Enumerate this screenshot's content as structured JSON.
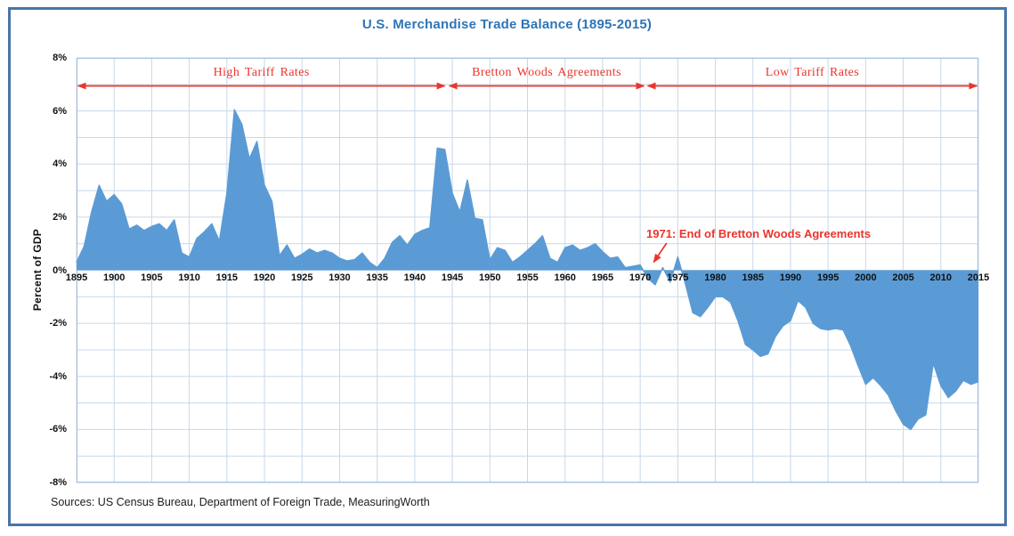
{
  "title": "U.S. Merchandise Trade Balance (1895-2015)",
  "source_note": "Sources: US Census Bureau, Department of Foreign Trade, MeasuringWorth",
  "y_axis": {
    "title": "Percent of GDP",
    "tick_labels": [
      "8%",
      "6%",
      "4%",
      "2%",
      "0%",
      "-2%",
      "-4%",
      "-6%",
      "-8%"
    ]
  },
  "x_axis": {
    "tick_labels": [
      "1895",
      "1900",
      "1905",
      "1910",
      "1915",
      "1920",
      "1925",
      "1930",
      "1935",
      "1940",
      "1945",
      "1950",
      "1955",
      "1960",
      "1965",
      "1970",
      "1975",
      "1980",
      "1985",
      "1990",
      "1995",
      "2000",
      "2005",
      "2010",
      "2015"
    ]
  },
  "annotations": {
    "zones": [
      {
        "label": "High Tariff Rates",
        "start_year": 1895.2,
        "end_year": 1944.0
      },
      {
        "label": "Bretton Woods Agreements",
        "start_year": 1944.6,
        "end_year": 1970.5
      },
      {
        "label": "Low Tariff Rates",
        "start_year": 1971.0,
        "end_year": 2014.8
      }
    ],
    "callout": {
      "label": "1971: End of Bretton Woods Agreements",
      "target_year": 1971.5
    }
  },
  "colors": {
    "area_fill": "#5B9BD5",
    "annotation_red": "#EA352C",
    "title_blue": "#2E75B6",
    "gridline": "#C8D8E8",
    "plot_border": "#A8C4DE",
    "frame_border": "#4A74A8",
    "tick_text": "#111111"
  },
  "chart_data": {
    "type": "area",
    "title": "U.S. Merchandise Trade Balance (1895-2015)",
    "xlabel": "",
    "ylabel": "Percent of GDP",
    "ylim": [
      -8,
      8
    ],
    "xlim": [
      1895,
      2015
    ],
    "grid": true,
    "x_tick_step": 5,
    "y_tick_step_labeled": 2,
    "y_tick_step_grid": 1,
    "legend": "none",
    "years": [
      1895,
      1896,
      1897,
      1898,
      1899,
      1900,
      1901,
      1902,
      1903,
      1904,
      1905,
      1906,
      1907,
      1908,
      1909,
      1910,
      1911,
      1912,
      1913,
      1914,
      1915,
      1916,
      1917,
      1918,
      1919,
      1920,
      1921,
      1922,
      1923,
      1924,
      1925,
      1926,
      1927,
      1928,
      1929,
      1930,
      1931,
      1932,
      1933,
      1934,
      1935,
      1936,
      1937,
      1938,
      1939,
      1940,
      1941,
      1942,
      1943,
      1944,
      1945,
      1946,
      1947,
      1948,
      1949,
      1950,
      1951,
      1952,
      1953,
      1954,
      1955,
      1956,
      1957,
      1958,
      1959,
      1960,
      1961,
      1962,
      1963,
      1964,
      1965,
      1966,
      1967,
      1968,
      1969,
      1970,
      1971,
      1972,
      1973,
      1974,
      1975,
      1976,
      1977,
      1978,
      1979,
      1980,
      1981,
      1982,
      1983,
      1984,
      1985,
      1986,
      1987,
      1988,
      1989,
      1990,
      1991,
      1992,
      1993,
      1994,
      1995,
      1996,
      1997,
      1998,
      1999,
      2000,
      2001,
      2002,
      2003,
      2004,
      2005,
      2006,
      2007,
      2008,
      2009,
      2010,
      2011,
      2012,
      2013,
      2014,
      2015
    ],
    "values": [
      0.3,
      0.9,
      2.2,
      3.2,
      2.6,
      2.85,
      2.5,
      1.55,
      1.7,
      1.5,
      1.65,
      1.75,
      1.5,
      1.9,
      0.65,
      0.5,
      1.2,
      1.45,
      1.75,
      1.1,
      2.9,
      6.05,
      5.5,
      4.2,
      4.85,
      3.2,
      2.6,
      0.55,
      0.95,
      0.45,
      0.6,
      0.8,
      0.65,
      0.75,
      0.65,
      0.45,
      0.35,
      0.4,
      0.65,
      0.3,
      0.1,
      0.45,
      1.05,
      1.3,
      0.95,
      1.35,
      1.5,
      1.6,
      4.6,
      4.55,
      2.9,
      2.2,
      3.4,
      1.95,
      1.9,
      0.4,
      0.85,
      0.75,
      0.3,
      0.5,
      0.75,
      1.0,
      1.3,
      0.45,
      0.3,
      0.85,
      0.95,
      0.75,
      0.85,
      1.0,
      0.7,
      0.45,
      0.5,
      0.1,
      0.15,
      0.2,
      -0.3,
      -0.55,
      0.1,
      -0.45,
      0.5,
      -0.5,
      -1.6,
      -1.75,
      -1.4,
      -1.0,
      -1.0,
      -1.2,
      -1.9,
      -2.8,
      -3.0,
      -3.25,
      -3.15,
      -2.5,
      -2.1,
      -1.9,
      -1.15,
      -1.4,
      -2.0,
      -2.2,
      -2.25,
      -2.2,
      -2.25,
      -2.85,
      -3.6,
      -4.3,
      -4.05,
      -4.35,
      -4.7,
      -5.3,
      -5.8,
      -6.0,
      -5.6,
      -5.45,
      -3.5,
      -4.35,
      -4.8,
      -4.55,
      -4.15,
      -4.3,
      -4.2
    ]
  }
}
